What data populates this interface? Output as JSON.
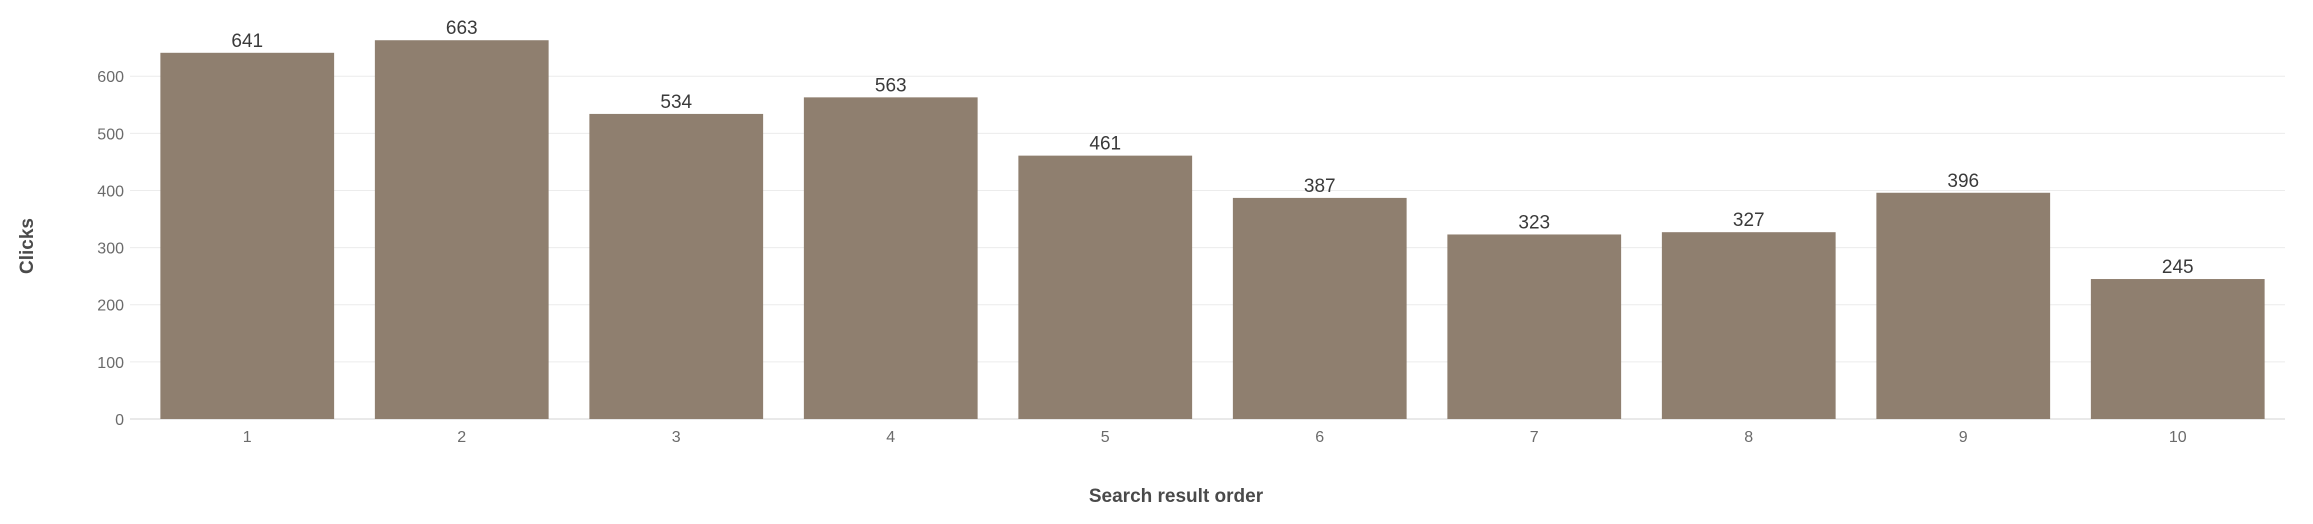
{
  "chart_data": {
    "type": "bar",
    "categories": [
      "1",
      "2",
      "3",
      "4",
      "5",
      "6",
      "7",
      "8",
      "9",
      "10"
    ],
    "values": [
      641,
      663,
      534,
      563,
      461,
      387,
      323,
      327,
      396,
      245
    ],
    "xlabel": "Search result order",
    "ylabel": "Clicks",
    "ylim": [
      0,
      700
    ],
    "yticks": [
      0,
      100,
      200,
      300,
      400,
      500,
      600
    ],
    "grid": "horizontal",
    "legend": "none",
    "bar_color": "#8f7f6f",
    "show_data_labels": true
  }
}
